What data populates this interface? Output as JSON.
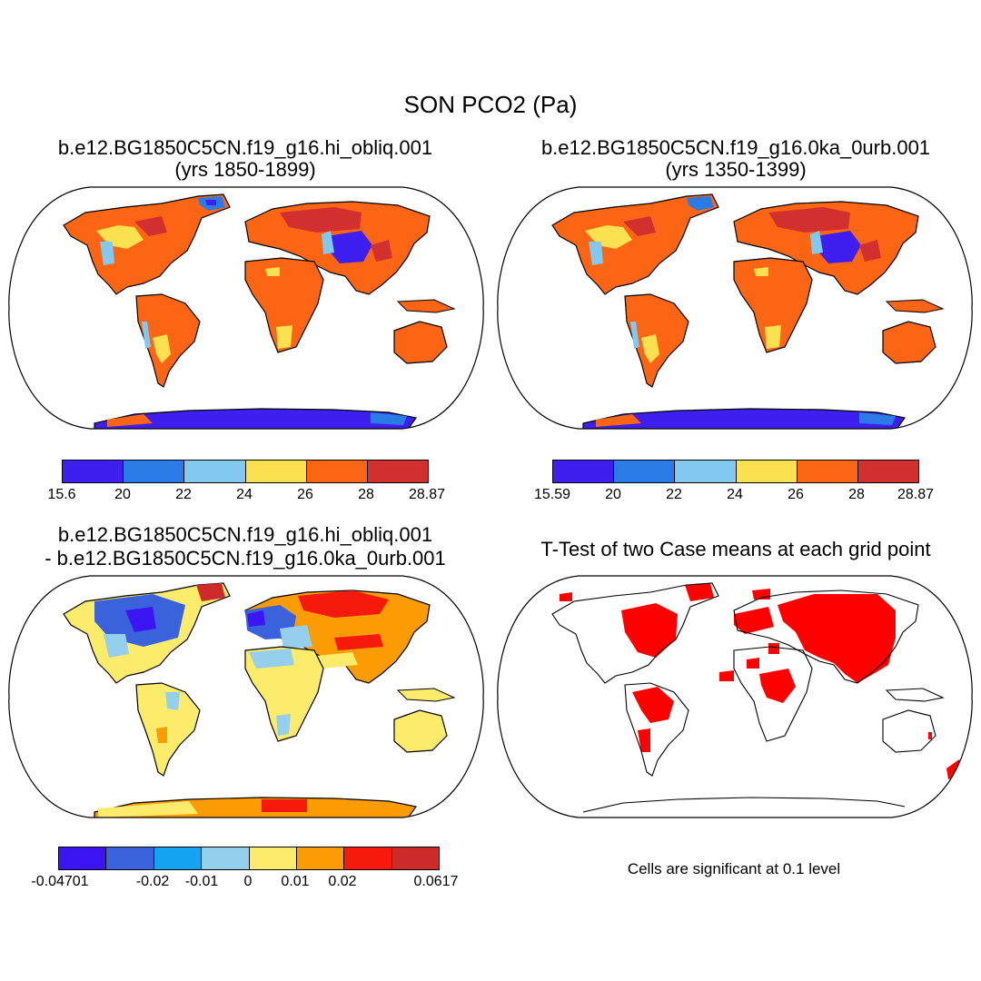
{
  "title": "SON PCO2 (Pa)",
  "panels": {
    "top_left": {
      "title_line1": "b.e12.BG1850C5CN.f19_g16.hi_obliq.001",
      "title_line2": "(yrs 1850-1899)",
      "colorbar": {
        "colors": [
          "#3f1ff0",
          "#2b7be6",
          "#82c8ef",
          "#fbe04f",
          "#fb6514",
          "#d22f2f"
        ],
        "labels": [
          "15.6",
          "20",
          "22",
          "24",
          "26",
          "28",
          "28.87"
        ]
      }
    },
    "top_right": {
      "title_line1": "b.e12.BG1850C5CN.f19_g16.0ka_0urb.001",
      "title_line2": "(yrs 1350-1399)",
      "colorbar": {
        "colors": [
          "#3f1ff0",
          "#2b7be6",
          "#82c8ef",
          "#fbe04f",
          "#fb6514",
          "#d22f2f"
        ],
        "labels": [
          "15.59",
          "20",
          "22",
          "24",
          "26",
          "28",
          "28.87"
        ]
      }
    },
    "bottom_left": {
      "title_line1": "b.e12.BG1850C5CN.f19_g16.hi_obliq.001",
      "title_line2": "- b.e12.BG1850C5CN.f19_g16.0ka_0urb.001",
      "colorbar": {
        "colors": [
          "#3c16f2",
          "#3a62dc",
          "#14a4f2",
          "#94cfee",
          "#fdeb6b",
          "#fb9c04",
          "#f71a0c",
          "#cd2a2a"
        ],
        "labels": [
          "-0.04701",
          "-0.02",
          "-0.01",
          "0",
          "0.01",
          "0.02",
          "0.0617"
        ]
      }
    },
    "bottom_right": {
      "title": "T-Test of two Case means at each grid point",
      "note": "Cells are significant at 0.1 level",
      "significant_color": "#ff0000"
    }
  }
}
